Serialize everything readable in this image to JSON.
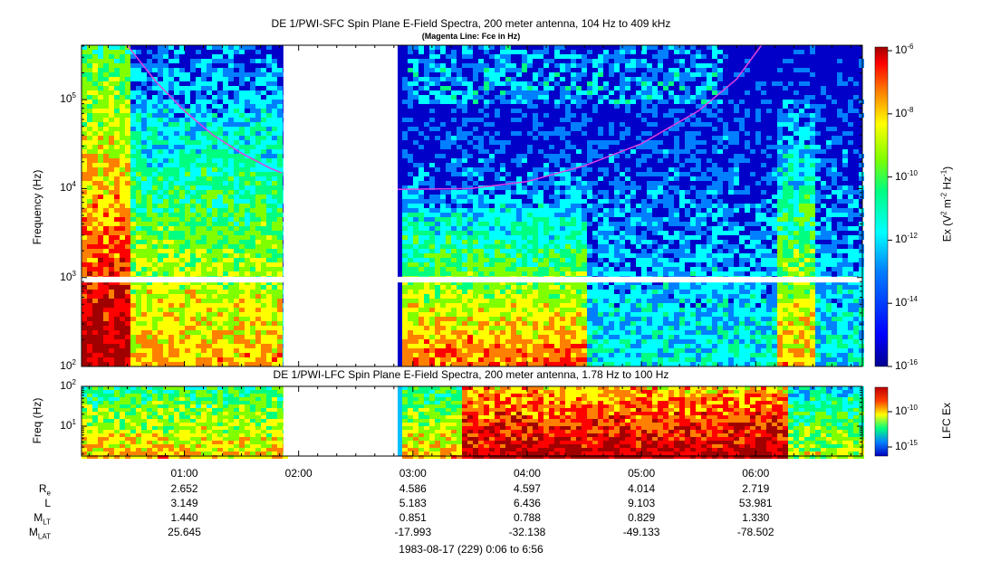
{
  "titles": {
    "sfc_title": "DE 1/PWI-SFC  Spin Plane E-Field Spectra, 200 meter antenna, 104 Hz to 409 kHz",
    "sfc_subtitle": "(Magenta Line: Fce in Hz)",
    "lfc_title": "DE 1/PWI-LFC  Spin Plane E-Field Spectra, 200 meter antenna, 1.78 Hz to 100 Hz",
    "footer": "1983-08-17 (229) 0:06 to 6:56"
  },
  "colors": {
    "background_low": "#0000b4",
    "data_gap": "#ffffff",
    "fce_line": "#e040e0",
    "colormap": [
      "#00008f",
      "#0000ff",
      "#0080ff",
      "#00ffff",
      "#00ff80",
      "#80ff00",
      "#ffff00",
      "#ff8000",
      "#ff0000",
      "#a00000"
    ]
  },
  "chart_data": [
    {
      "type": "heatmap",
      "name_printed": "SFC",
      "ylabel": "Frequency (Hz)",
      "y_scale": "log",
      "ylim": [
        100,
        409000
      ],
      "yticks": [
        {
          "mant": "10",
          "exp": "2",
          "value": 100
        },
        {
          "mant": "10",
          "exp": "3",
          "value": 1000
        },
        {
          "mant": "10",
          "exp": "4",
          "value": 10000
        },
        {
          "mant": "10",
          "exp": "5",
          "value": 100000
        }
      ],
      "xlim": [
        "00:06",
        "06:56"
      ],
      "data_gaps": [
        {
          "start": "01:52",
          "end": "02:52"
        },
        {
          "band_hz": [
            880,
            1020
          ]
        }
      ],
      "colorbar": {
        "label_parts": [
          "Ex (V",
          "2",
          " m",
          "-2",
          " Hz",
          "-1",
          ")"
        ],
        "scale": "log",
        "range": [
          1e-16,
          1e-06
        ],
        "ticks": [
          {
            "mant": "10",
            "exp": "-6"
          },
          {
            "mant": "10",
            "exp": "-8"
          },
          {
            "mant": "10",
            "exp": "-10"
          },
          {
            "mant": "10",
            "exp": "-12"
          },
          {
            "mant": "10",
            "exp": "-14"
          },
          {
            "mant": "10",
            "exp": "-16"
          }
        ]
      },
      "fce_line": {
        "series": "Fce in Hz",
        "segments": [
          {
            "points": [
              [
                "00:30",
                409000
              ],
              [
                "00:45",
                160000
              ],
              [
                "01:00",
                75000
              ],
              [
                "01:15",
                40000
              ],
              [
                "01:30",
                25000
              ],
              [
                "01:45",
                17000
              ],
              [
                "01:51",
                15000
              ]
            ]
          },
          {
            "points": [
              [
                "02:52",
                9800
              ],
              [
                "03:30",
                10000
              ],
              [
                "04:00",
                12000
              ],
              [
                "04:30",
                18000
              ],
              [
                "05:00",
                32000
              ],
              [
                "05:30",
                75000
              ],
              [
                "05:50",
                170000
              ],
              [
                "06:03",
                409000
              ]
            ]
          }
        ]
      }
    },
    {
      "type": "heatmap",
      "name_printed": "LFC",
      "ylabel": "Freq (Hz)",
      "y_scale": "log",
      "ylim": [
        1.78,
        100
      ],
      "yticks": [
        {
          "mant": "10",
          "exp": "1",
          "value": 10
        },
        {
          "mant": "10",
          "exp": "2",
          "value": 100
        }
      ],
      "xlim": [
        "00:06",
        "06:56"
      ],
      "data_gaps": [
        {
          "start": "01:52",
          "end": "02:52"
        }
      ],
      "colorbar": {
        "label": "LFC Ex",
        "scale": "log",
        "ticks": [
          {
            "mant": "10",
            "exp": "-10"
          },
          {
            "mant": "10",
            "exp": "-15"
          }
        ]
      },
      "xticks": [
        "01:00",
        "02:00",
        "03:00",
        "04:00",
        "05:00",
        "06:00"
      ]
    }
  ],
  "ephemeris": {
    "rows": [
      {
        "label": "R",
        "label_sub": "e",
        "values": [
          "2.652",
          "",
          "4.586",
          "4.597",
          "4.014",
          "2.719"
        ]
      },
      {
        "label": "L",
        "label_sub": "",
        "values": [
          "3.149",
          "",
          "5.183",
          "6.436",
          "9.103",
          "53.981"
        ]
      },
      {
        "label": "M",
        "label_sub": "LT",
        "values": [
          "1.440",
          "",
          "0.851",
          "0.788",
          "0.829",
          "1.330"
        ]
      },
      {
        "label": "M",
        "label_sub": "LAT",
        "values": [
          "25.645",
          "",
          "-17.993",
          "-32.138",
          "-49.133",
          "-78.502"
        ]
      }
    ]
  }
}
